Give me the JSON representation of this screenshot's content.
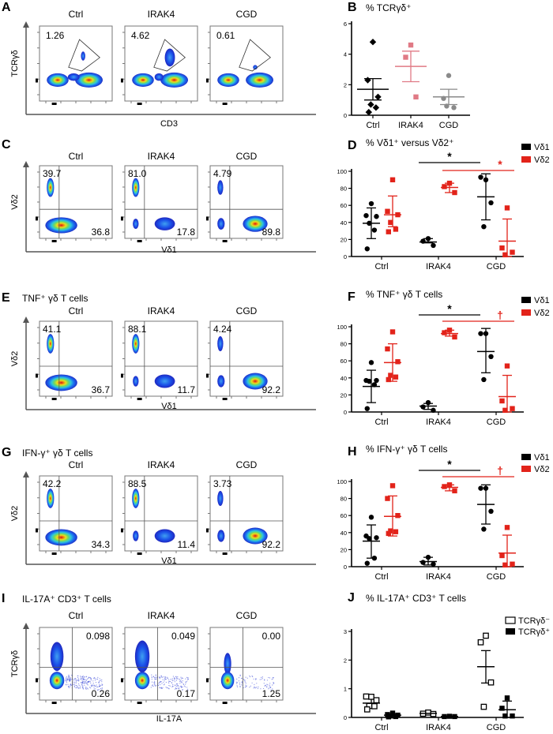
{
  "flow": {
    "A": {
      "letter": "A",
      "columns": [
        "Ctrl",
        "IRAK4",
        "CGD"
      ],
      "gate_values": [
        "1.26",
        "4.62",
        "0.61"
      ],
      "y_label": "TCRγδ",
      "x_label": "CD3"
    },
    "C": {
      "letter": "C",
      "title": "",
      "columns": [
        "Ctrl",
        "IRAK4",
        "CGD"
      ],
      "upper_left": [
        "39.7",
        "81.0",
        "4.79"
      ],
      "lower_right": [
        "36.8",
        "17.8",
        "89.8"
      ],
      "y_label": "Vδ2",
      "x_label": "Vδ1"
    },
    "E": {
      "letter": "E",
      "title": "TNF⁺ γδ T cells",
      "columns": [
        "Ctrl",
        "IRAK4",
        "CGD"
      ],
      "upper_left": [
        "41.1",
        "88.1",
        "4.24"
      ],
      "lower_right": [
        "36.7",
        "11.7",
        "92.2"
      ],
      "y_label": "Vδ2",
      "x_label": "Vδ1"
    },
    "G": {
      "letter": "G",
      "title": "IFN-γ⁺ γδ T cells",
      "columns": [
        "Ctrl",
        "IRAK4",
        "CGD"
      ],
      "upper_left": [
        "42.2",
        "88.5",
        "3.73"
      ],
      "lower_right": [
        "34.3",
        "11.4",
        "92.2"
      ],
      "y_label": "Vδ2",
      "x_label": "Vδ1"
    },
    "I": {
      "letter": "I",
      "title": "IL-17A⁺ CD3⁺ T cells",
      "columns": [
        "Ctrl",
        "IRAK4",
        "CGD"
      ],
      "upper_right": [
        "0.098",
        "0.049",
        "0.00"
      ],
      "lower_right": [
        "0.26",
        "0.17",
        "1.25"
      ],
      "y_label": "TCRγδ",
      "x_label": "IL-17A"
    }
  },
  "chart_data": [
    {
      "letter": "B",
      "type": "scatter",
      "title": "% TCRγδ⁺",
      "categories": [
        "Ctrl",
        "IRAK4",
        "CGD"
      ],
      "ylim": [
        0,
        6
      ],
      "yticks": [
        0,
        2,
        4,
        6
      ],
      "grid": false,
      "series": [
        {
          "groups": [
            {
              "category": "Ctrl",
              "color": "#000000",
              "marker": "diamond",
              "points": [
                4.8,
                2.3,
                1.2,
                0.7,
                0.5,
                0.2
              ],
              "mean": 1.7,
              "error": [
                1.0,
                2.4
              ]
            },
            {
              "category": "IRAK4",
              "color": "#e07a85",
              "marker": "square",
              "points": [
                4.6,
                3.8,
                1.2
              ],
              "mean": 3.2,
              "error": [
                2.2,
                4.2
              ]
            },
            {
              "category": "CGD",
              "color": "#8a8a8a",
              "marker": "circle",
              "points": [
                2.6,
                1.1,
                0.5,
                0.6
              ],
              "mean": 1.2,
              "error": [
                0.7,
                1.7
              ]
            }
          ]
        }
      ],
      "significance": []
    },
    {
      "letter": "D",
      "type": "scatter",
      "title": "% Vδ1⁺ versus Vδ2⁺",
      "categories": [
        "Ctrl",
        "IRAK4",
        "CGD"
      ],
      "ylim": [
        0,
        100
      ],
      "yticks": [
        0,
        20,
        40,
        60,
        80,
        100
      ],
      "grid": false,
      "legend": "top-right",
      "series": [
        {
          "name": "Vδ1",
          "color": "#000000",
          "marker": "circle",
          "groups": [
            {
              "points": [
                62,
                48,
                47,
                39,
                31,
                9
              ],
              "mean": 39,
              "error": [
                21,
                57
              ]
            },
            {
              "points": [
                21,
                18,
                13
              ],
              "mean": 17,
              "error": [
                16,
                21
              ]
            },
            {
              "points": [
                90,
                93,
                63,
                35
              ],
              "mean": 70,
              "error": [
                43,
                97
              ]
            }
          ]
        },
        {
          "name": "Vδ2",
          "color": "#e2231a",
          "marker": "square",
          "groups": [
            {
              "points": [
                90,
                53,
                49,
                40,
                32,
                29
              ],
              "mean": 49,
              "error": [
                35,
                71
              ]
            },
            {
              "points": [
                86,
                82,
                75
              ],
              "mean": 81,
              "error": [
                75,
                86
              ]
            },
            {
              "points": [
                57,
                10,
                5,
                2
              ],
              "mean": 18,
              "error": [
                0,
                44
              ]
            }
          ]
        }
      ],
      "significance": [
        {
          "symbol": "*",
          "color": "#000000",
          "from": "IRAK4",
          "to": "CGD"
        },
        {
          "symbol": "*",
          "color": "#e2231a",
          "from": "IRAK4",
          "to": "CGD"
        }
      ]
    },
    {
      "letter": "F",
      "type": "scatter",
      "title": "% TNF⁺ γδ T cells",
      "categories": [
        "Ctrl",
        "IRAK4",
        "CGD"
      ],
      "ylim": [
        0,
        100
      ],
      "yticks": [
        0,
        20,
        40,
        60,
        80,
        100
      ],
      "grid": false,
      "legend": "top-right",
      "series": [
        {
          "name": "Vδ1",
          "color": "#000000",
          "marker": "circle",
          "groups": [
            {
              "points": [
                58,
                37,
                37,
                36,
                32,
                4
              ],
              "mean": 30,
              "error": [
                11,
                49
              ]
            },
            {
              "points": [
                11,
                6,
                2
              ],
              "mean": 7,
              "error": [
                3,
                10
              ]
            },
            {
              "points": [
                92,
                92,
                65,
                38
              ],
              "mean": 71,
              "error": [
                46,
                98
              ]
            }
          ]
        },
        {
          "name": "Vδ2",
          "color": "#e2231a",
          "marker": "square",
          "groups": [
            {
              "points": [
                94,
                74,
                59,
                43,
                41,
                38
              ],
              "mean": 58,
              "error": [
                36,
                80
              ]
            },
            {
              "points": [
                96,
                93,
                88
              ],
              "mean": 92,
              "error": [
                89,
                96
              ]
            },
            {
              "points": [
                54,
                13,
                4,
                2
              ],
              "mean": 18,
              "error": [
                0,
                43
              ]
            }
          ]
        }
      ],
      "significance": [
        {
          "symbol": "*",
          "color": "#000000",
          "from": "IRAK4",
          "to": "CGD"
        },
        {
          "symbol": "†",
          "color": "#e2231a",
          "from": "IRAK4",
          "to": "CGD"
        }
      ]
    },
    {
      "letter": "H",
      "type": "scatter",
      "title": "% IFN-γ⁺ γδ T cells",
      "categories": [
        "Ctrl",
        "IRAK4",
        "CGD"
      ],
      "ylim": [
        0,
        100
      ],
      "yticks": [
        0,
        20,
        40,
        60,
        80,
        100
      ],
      "grid": false,
      "legend": "top-right",
      "series": [
        {
          "name": "Vδ1",
          "color": "#000000",
          "marker": "circle",
          "groups": [
            {
              "points": [
                58,
                36,
                34,
                33,
                10,
                4
              ],
              "mean": 30,
              "error": [
                10,
                49
              ]
            },
            {
              "points": [
                11,
                5,
                3
              ],
              "mean": 6,
              "error": [
                2,
                11
              ]
            },
            {
              "points": [
                92,
                92,
                65,
                44
              ],
              "mean": 73,
              "error": [
                50,
                96
              ]
            }
          ]
        },
        {
          "name": "Vδ2",
          "color": "#e2231a",
          "marker": "square",
          "groups": [
            {
              "points": [
                95,
                80,
                60,
                42,
                41,
                39
              ],
              "mean": 59,
              "error": [
                36,
                83
              ]
            },
            {
              "points": [
                96,
                94,
                89
              ],
              "mean": 93,
              "error": [
                89,
                96
              ]
            },
            {
              "points": [
                46,
                13,
                3,
                2
              ],
              "mean": 16,
              "error": [
                0,
                37
              ]
            }
          ]
        }
      ],
      "significance": [
        {
          "symbol": "*",
          "color": "#000000",
          "from": "IRAK4",
          "to": "CGD"
        },
        {
          "symbol": "†",
          "color": "#e2231a",
          "from": "IRAK4",
          "to": "CGD"
        }
      ]
    },
    {
      "letter": "J",
      "type": "scatter",
      "title": "% IL-17A⁺ CD3⁺ T cells",
      "categories": [
        "Ctrl",
        "IRAK4",
        "CGD"
      ],
      "ylim": [
        0,
        3
      ],
      "yticks": [
        0,
        1,
        2,
        3
      ],
      "grid": false,
      "legend": "top-right",
      "series": [
        {
          "name": "TCRγδ⁻",
          "color": "#000000",
          "marker": "open-square",
          "groups": [
            {
              "points": [
                0.72,
                0.73,
                0.6,
                0.4,
                0.39,
                0.28
              ],
              "mean": 0.5,
              "error": [
                0.35,
                0.67
              ]
            },
            {
              "points": [
                0.17,
                0.13,
                0.12
              ],
              "mean": 0.14,
              "error": [
                0.12,
                0.16
              ]
            },
            {
              "points": [
                2.85,
                2.62,
                1.22,
                0.37
              ],
              "mean": 1.77,
              "error": [
                1.2,
                2.33
              ]
            }
          ]
        },
        {
          "name": "TCRγδ⁺",
          "color": "#000000",
          "marker": "square",
          "groups": [
            {
              "points": [
                0.15,
                0.1,
                0.08,
                0.05,
                0.03,
                0.02
              ],
              "mean": 0.08,
              "error": [
                0.05,
                0.11
              ]
            },
            {
              "points": [
                0.04,
                0.03,
                0.03
              ],
              "mean": 0.03,
              "error": [
                0.02,
                0.04
              ]
            },
            {
              "points": [
                0.68,
                0.32,
                0.05,
                0.05
              ],
              "mean": 0.27,
              "error": [
                0.0,
                0.57
              ]
            }
          ]
        }
      ],
      "significance": []
    }
  ]
}
